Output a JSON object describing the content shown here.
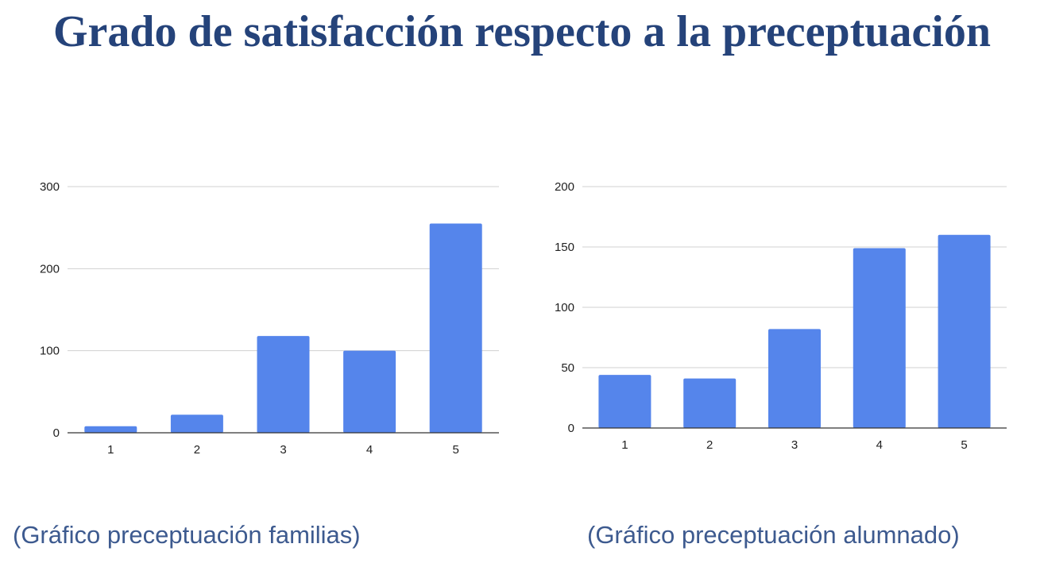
{
  "header": {
    "title": "Grado de satisfacción respecto a la preceptuación"
  },
  "colors": {
    "title": "#25437a",
    "bar": "#5585eb",
    "grid": "#d0d0d0",
    "axis": "#333333",
    "caption": "#3d5a8f"
  },
  "chart_data": [
    {
      "type": "bar",
      "caption": "(Gráfico preceptuación familias)",
      "categories": [
        "1",
        "2",
        "3",
        "4",
        "5"
      ],
      "values": [
        8,
        22,
        118,
        100,
        255
      ],
      "title": "",
      "xlabel": "",
      "ylabel": "",
      "ylim": [
        0,
        300
      ],
      "yticks": [
        0,
        100,
        200,
        300
      ],
      "grid": true,
      "legend": "none"
    },
    {
      "type": "bar",
      "caption": "(Gráfico preceptuación alumnado)",
      "categories": [
        "1",
        "2",
        "3",
        "4",
        "5"
      ],
      "values": [
        44,
        41,
        82,
        149,
        160
      ],
      "title": "",
      "xlabel": "",
      "ylabel": "",
      "ylim": [
        0,
        200
      ],
      "yticks": [
        0,
        50,
        100,
        150,
        200
      ],
      "grid": true,
      "legend": "none"
    }
  ]
}
